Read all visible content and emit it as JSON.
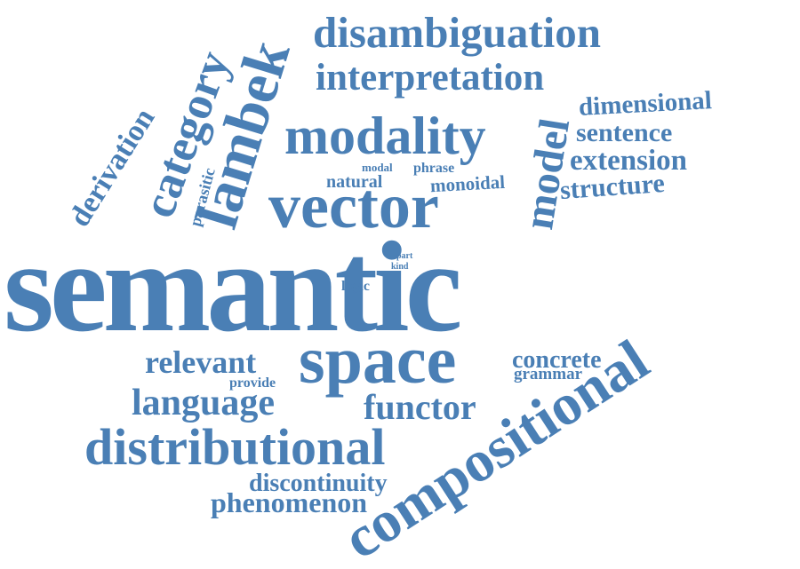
{
  "color": "#4a7fb5",
  "background": "#ffffff",
  "words": [
    {
      "id": "semantic",
      "text": "semantic"
    },
    {
      "id": "vector",
      "text": "vector"
    },
    {
      "id": "space",
      "text": "space"
    },
    {
      "id": "compositional",
      "text": "compositional"
    },
    {
      "id": "distributional",
      "text": "distributional"
    },
    {
      "id": "modality",
      "text": "modality"
    },
    {
      "id": "disambiguation",
      "text": "disambiguation"
    },
    {
      "id": "interpretation",
      "text": "interpretation"
    },
    {
      "id": "lambek",
      "text": "lambek"
    },
    {
      "id": "category",
      "text": "category"
    },
    {
      "id": "model",
      "text": "model"
    },
    {
      "id": "derivation",
      "text": "derivation"
    },
    {
      "id": "dimensional",
      "text": "dimensional"
    },
    {
      "id": "sentence",
      "text": "sentence"
    },
    {
      "id": "extension",
      "text": "extension"
    },
    {
      "id": "structure",
      "text": "structure"
    },
    {
      "id": "natural",
      "text": "natural"
    },
    {
      "id": "monoidal",
      "text": "monoidal"
    },
    {
      "id": "phrase",
      "text": "phrase"
    },
    {
      "id": "modal",
      "text": "modal"
    },
    {
      "id": "parasitic",
      "text": "parasitic"
    },
    {
      "id": "language",
      "text": "language"
    },
    {
      "id": "functor",
      "text": "functor"
    },
    {
      "id": "relevant",
      "text": "relevant"
    },
    {
      "id": "provide",
      "text": "provide"
    },
    {
      "id": "concrete",
      "text": "concrete"
    },
    {
      "id": "grammar",
      "text": "grammar"
    },
    {
      "id": "discontinuity",
      "text": "discontinuity"
    },
    {
      "id": "phenomenon",
      "text": "phenomenon"
    },
    {
      "id": "logic",
      "text": "logic"
    },
    {
      "id": "part",
      "text": "part"
    },
    {
      "id": "kind",
      "text": "kind"
    }
  ]
}
